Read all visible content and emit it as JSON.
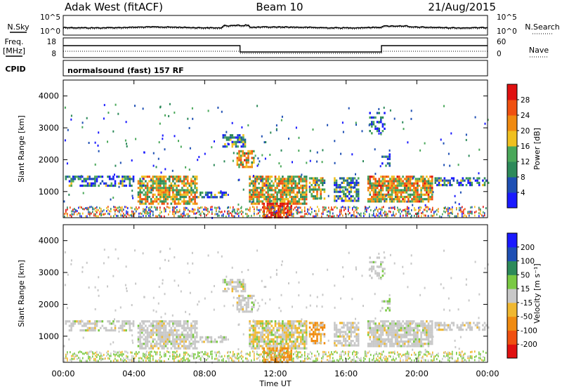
{
  "header": {
    "title": "Adak West (fitACF)",
    "beam": "Beam 10",
    "date": "21/Aug/2015"
  },
  "params": {
    "nsky_label": "N.Sky",
    "nsearch_label": "N.Search",
    "freq_label_1": "Freq.",
    "freq_label_2": "[MHz]",
    "nave_label": "Nave",
    "cpid_label": "CPID",
    "cpid_text": "normalsound (fast) 157 RF",
    "noise_ticks_left": [
      "10^5",
      "10^0"
    ],
    "noise_ticks_right": [
      "10^5",
      "10^0"
    ],
    "freq_ticks": [
      "18",
      "8"
    ],
    "nave_ticks": [
      "60",
      "0"
    ]
  },
  "colors": {
    "power": [
      "#1a1aff",
      "#1e4fb4",
      "#2d8a5a",
      "#4aa85a",
      "#f0c020",
      "#f08a10",
      "#f05010",
      "#e01010"
    ],
    "velocity": [
      "#e01010",
      "#f05010",
      "#f08a10",
      "#f0b830",
      "#c8c8c8",
      "#7ac943",
      "#2d8a5a",
      "#1e4fb4",
      "#1a1aff"
    ],
    "scatter_gray": "#c8c8c8"
  },
  "chart_data": [
    {
      "type": "heatmap",
      "name": "Power",
      "ylabel": "Slant Range [km]",
      "y_ticks": [
        1000,
        2000,
        3000,
        4000
      ],
      "ylim": [
        180,
        4500
      ],
      "x_ticks": [
        "00:00",
        "04:00",
        "08:00",
        "12:00",
        "16:00",
        "20:00",
        "00:00"
      ],
      "xlim_hours": [
        0,
        24
      ],
      "colorbar": {
        "label": "Power [dB]",
        "ticks": [
          4,
          8,
          12,
          16,
          20,
          24,
          28
        ],
        "range": [
          0,
          30
        ]
      }
    },
    {
      "type": "heatmap",
      "name": "Velocity",
      "ylabel": "Slant Range [km]",
      "y_ticks": [
        1000,
        2000,
        3000,
        4000
      ],
      "ylim": [
        180,
        4500
      ],
      "xlabel": "Time UT",
      "x_ticks": [
        "00:00",
        "04:00",
        "08:00",
        "12:00",
        "16:00",
        "20:00",
        "00:00"
      ],
      "xlim_hours": [
        0,
        24
      ],
      "colorbar": {
        "label": "Velocity [m s⁻¹]",
        "ticks": [
          "200",
          "100",
          "50",
          "15",
          "-15",
          "-50",
          "-100",
          "-200"
        ]
      }
    }
  ]
}
